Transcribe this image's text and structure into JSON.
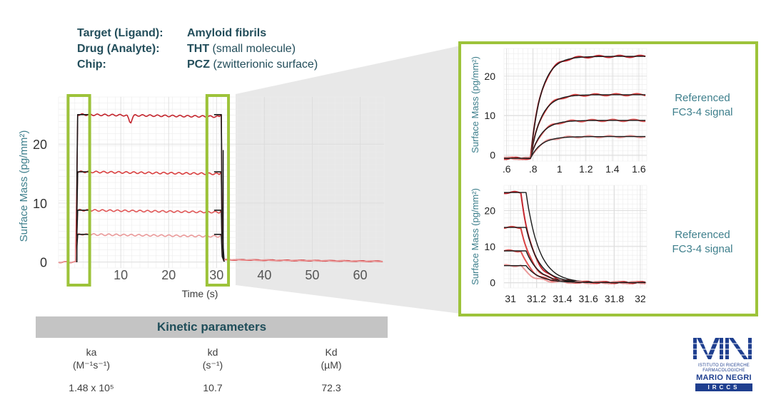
{
  "info": {
    "rows": [
      {
        "label": "Target (Ligand):",
        "value_bold": "Amyloid fibrils",
        "value_rest": ""
      },
      {
        "label": "Drug (Analyte):",
        "value_bold": "THT",
        "value_rest": " (small molecule)"
      },
      {
        "label": "Chip:",
        "value_bold": "PCZ",
        "value_rest": " (zwitterionic surface)"
      }
    ]
  },
  "side_labels": {
    "top_line1": "Referenced",
    "top_line2": "FC3-4 signal",
    "bottom_line1": "Referenced",
    "bottom_line2": "FC3-4 signal"
  },
  "kinetic": {
    "title": "Kinetic parameters",
    "columns": [
      {
        "name": "ka",
        "unit": "(M⁻¹s⁻¹)",
        "value": "1.48 x 10⁵"
      },
      {
        "name": "kd",
        "unit": "(s⁻¹)",
        "value": "10.7"
      },
      {
        "name": "Kd",
        "unit": "(µM)",
        "value": "72.3"
      }
    ]
  },
  "logo": {
    "mark": "MN",
    "line1": "ISTITUTO DI RICERCHE",
    "line2": "FARMACOLOGICHE",
    "line3": "MARIO NEGRI",
    "line4": "IRCCS"
  },
  "colors": {
    "highlight": "#9dc33a",
    "axis_text": "#3e7f8c",
    "fit_line": "#1a1a1a",
    "data_red": [
      "#c4262e",
      "#d94141",
      "#e05757",
      "#ea9a9a"
    ]
  },
  "chart_data": [
    {
      "type": "line",
      "id": "main",
      "xlabel": "Time (s)",
      "ylabel": "Surface Mass (pg/mm²)",
      "xlim": [
        -3,
        65
      ],
      "ylim": [
        -1,
        28
      ],
      "xticks": [
        10,
        20,
        30,
        40,
        50,
        60
      ],
      "xtick_labels": [
        "10",
        "20",
        "30",
        "40",
        "50",
        "60"
      ],
      "yticks": [
        0,
        10,
        20
      ],
      "ytick_labels": [
        "0",
        "10",
        "20"
      ],
      "grid": true,
      "series": [
        {
          "plateau": 25.0,
          "association_start": 0.8,
          "dissociation_start": 31.0,
          "bump": {
            "x": 12.0,
            "depth": 1.2
          }
        },
        {
          "plateau": 15.3,
          "association_start": 0.8,
          "dissociation_start": 31.0
        },
        {
          "plateau": 8.8,
          "association_start": 0.8,
          "dissociation_start": 31.0
        },
        {
          "plateau": 4.7,
          "association_start": 0.8,
          "dissociation_start": 31.0
        }
      ],
      "highlights": [
        {
          "x0": -1.0,
          "x1": 3.5
        },
        {
          "x0": 28.0,
          "x1": 32.5
        }
      ]
    },
    {
      "type": "line",
      "id": "association-zoom",
      "ylabel": "Surface Mass (pg/mm²)",
      "xlim": [
        0.58,
        1.66
      ],
      "ylim": [
        -1.5,
        27
      ],
      "xticks": [
        0.6,
        0.8,
        1.0,
        1.2,
        1.4,
        1.6
      ],
      "xtick_labels": [
        ".6",
        ".8",
        "1",
        "1.2",
        "1.4",
        "1.6"
      ],
      "yticks": [
        0,
        10,
        20
      ],
      "ytick_labels": [
        "0",
        "10",
        "20"
      ],
      "grid": true,
      "plateaus": [
        25.0,
        15.3,
        8.8,
        4.7
      ],
      "onset": 0.78
    },
    {
      "type": "line",
      "id": "dissociation-zoom",
      "ylabel": "Surface Mass (pg/mm²)",
      "xlim": [
        30.95,
        32.05
      ],
      "ylim": [
        -1.5,
        27
      ],
      "xticks": [
        31.0,
        31.2,
        31.4,
        31.6,
        31.8,
        32.0
      ],
      "xtick_labels": [
        "31",
        "31.2",
        "31.4",
        "31.6",
        "31.8",
        "32"
      ],
      "yticks": [
        0,
        10,
        20
      ],
      "ytick_labels": [
        "0",
        "10",
        "20"
      ],
      "grid": true,
      "start_levels": [
        25.0,
        15.3,
        8.8,
        4.7
      ],
      "onset": 31.08
    }
  ]
}
